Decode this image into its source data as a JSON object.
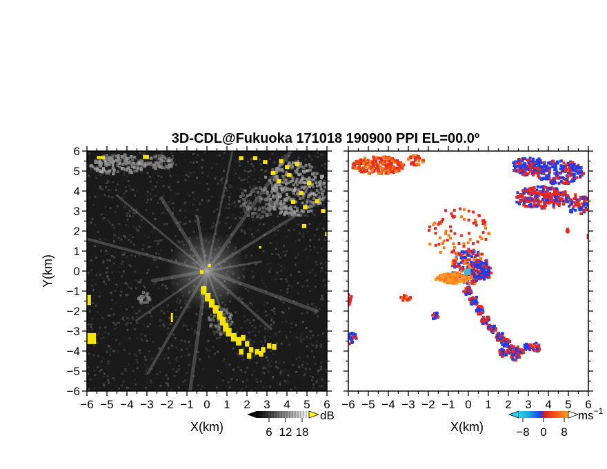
{
  "figure": {
    "title": "3D-CDL@Fukuoka 171018 190900 PPI EL=00.0º"
  },
  "colors": {
    "reflectivity_background": "#1a1a1a",
    "reflectivity_highlight": "#f5e400",
    "velocity_red": "#e8281e",
    "velocity_blue": "#1e3cf0",
    "velocity_orange": "#ff7a1a",
    "velocity_cyan": "#23c4e8"
  },
  "chart_data": [
    {
      "type": "heatmap",
      "name": "reflectivity-ppi",
      "xlabel": "X(km)",
      "ylabel": "Y(km)",
      "xlim": [
        -6,
        6
      ],
      "ylim": [
        -6,
        6
      ],
      "xticks": [
        "−6",
        "−5",
        "−4",
        "−3",
        "−2",
        "−1",
        "0",
        "1",
        "2",
        "3",
        "4",
        "5",
        "6"
      ],
      "yticks": [
        "−6",
        "−5",
        "−4",
        "−3",
        "−2",
        "−1",
        "0",
        "1",
        "2",
        "3",
        "4",
        "5",
        "6"
      ],
      "grid": false,
      "colorbar": {
        "ticks": [
          "6",
          "12",
          "18"
        ],
        "unit": "dB",
        "colormap": "grayscale, yellow above max"
      },
      "features": [
        {
          "label": "yellow echo band",
          "x": [
            -0.3,
            1.0
          ],
          "y": [
            -0.8,
            -3.0
          ]
        },
        {
          "label": "yellow echo cluster",
          "x": [
            1.7,
            3.4
          ],
          "y": [
            -3.2,
            -4.1
          ]
        },
        {
          "label": "yellow echoes upper right",
          "x": [
            3.2,
            5.8
          ],
          "y": [
            2.4,
            5.8
          ]
        },
        {
          "label": "yellow echoes left edge",
          "x": [
            -6,
            -5.6
          ],
          "y": [
            -3.6,
            -1.2
          ]
        }
      ]
    },
    {
      "type": "heatmap",
      "name": "doppler-velocity-ppi",
      "xlabel": "X(km)",
      "xlim": [
        -6,
        6
      ],
      "ylim": [
        -6,
        6
      ],
      "xticks": [
        "−6",
        "−5",
        "−4",
        "−3",
        "−2",
        "−1",
        "0",
        "1",
        "2",
        "3",
        "4",
        "5",
        "6"
      ],
      "yticks": [
        "−6",
        "−5",
        "−4",
        "−3",
        "−2",
        "−1",
        "0",
        "1",
        "2",
        "3",
        "4",
        "5",
        "6"
      ],
      "grid": false,
      "colorbar": {
        "ticks": [
          "−8",
          "0",
          "8"
        ],
        "unit": "ms",
        "unit_exponent": "−1",
        "colormap": "cyan-blue (negative) to red-orange (positive)"
      },
      "features": [
        {
          "label": "orange/red echoes upper left",
          "x": [
            -5.9,
            -2.5
          ],
          "y": [
            4.8,
            5.9
          ]
        },
        {
          "label": "red/blue echoes upper right",
          "x": [
            1.3,
            6.0
          ],
          "y": [
            2.8,
            5.8
          ]
        },
        {
          "label": "red/blue echo band",
          "x": [
            -0.2,
            3.5
          ],
          "y": [
            -0.8,
            -4.3
          ]
        },
        {
          "label": "near-site mixed velocities",
          "x": [
            -2.0,
            1.2
          ],
          "y": [
            -1.1,
            1.3
          ]
        }
      ]
    }
  ]
}
